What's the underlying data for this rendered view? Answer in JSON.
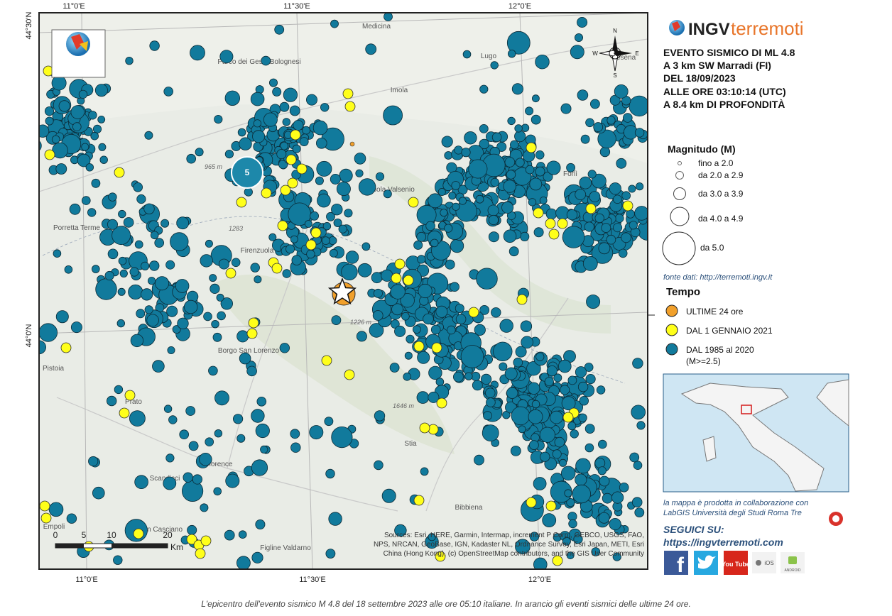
{
  "logo": {
    "brand": "INGV",
    "product": "terremoti",
    "map_badge": "INGV"
  },
  "event": {
    "lines": [
      "EVENTO SISMICO DI ML 4.8",
      "A 3 km SW Marradi (FI)",
      "DEL 18/09/2023",
      "ALLE ORE 03:10:14 (UTC)",
      "A 8.4 km DI PROFONDITÀ"
    ]
  },
  "magnitude_legend": {
    "title": "Magnitudo (M)",
    "items": [
      "fino a 2.0",
      "da 2.0 a 2.9",
      "da 3.0 a 3.9",
      "da 4.0 a 4.9",
      "da 5.0"
    ]
  },
  "source": "fonte dati: http://terremoti.ingv.it",
  "time_legend": {
    "title": "Tempo",
    "items": [
      "ULTIME 24 ore",
      "DAL 1 GENNAIO 2021",
      "DAL 1985 al 2020"
    ],
    "note": "(M>=2.5)"
  },
  "credit": [
    "la mappa è prodotta in collaborazione con",
    "LabGIS Università degli Studi Roma Tre"
  ],
  "follow": {
    "title": "SEGUICI SU:",
    "url": "https://ingvterremoti.com"
  },
  "social": [
    "f",
    "You Tube",
    "iOS",
    "ANDROID"
  ],
  "map": {
    "top_ticks": [
      "11°0'E",
      "11°30'E",
      "12°0'E"
    ],
    "bottom_ticks": [
      "11°0'E",
      "11°30'E",
      "12°0'E"
    ],
    "left_ticks": [
      "44°30'N",
      "44°0'N"
    ],
    "compass": [
      "N",
      "S",
      "W",
      "E"
    ],
    "places": [
      "Medicina",
      "Lugo",
      "Imola",
      "Parco dei Gessi Bolognesi",
      "Casola Valsenio",
      "Forlì",
      "Cesena",
      "Porretta Terme",
      "Firenzuola",
      "Borgo San Lorenzo",
      "Pistoia",
      "Prato",
      "Florence",
      "Empoli",
      "Scandicci",
      "San Casciano",
      "Figline Valdarno",
      "Stia",
      "Bibbiena"
    ],
    "heights": [
      "965 m",
      "1283",
      "1226 m",
      "1646 m"
    ],
    "big_event_label": "5",
    "scale": {
      "ticks": [
        "0",
        "5",
        "10",
        "20"
      ],
      "unit": "Km"
    },
    "attribution": [
      "Sources: Esri, HERE, Garmin, Intermap, increment P Corp., GEBCO, USGS, FAO,",
      "NPS, NRCAN, GeoBase, IGN, Kadaster NL, Ordnance Survey, Esri Japan, METI, Esri",
      "China (Hong Kong), (c) OpenStreetMap contributors, and the GIS User Community"
    ]
  },
  "caption": "L'epicentro dell'evento sismico M 4.8 del 18 settembre 2023 alle ore 05:10 italiane. In arancio gli eventi sismici delle ultime 24 ore."
}
